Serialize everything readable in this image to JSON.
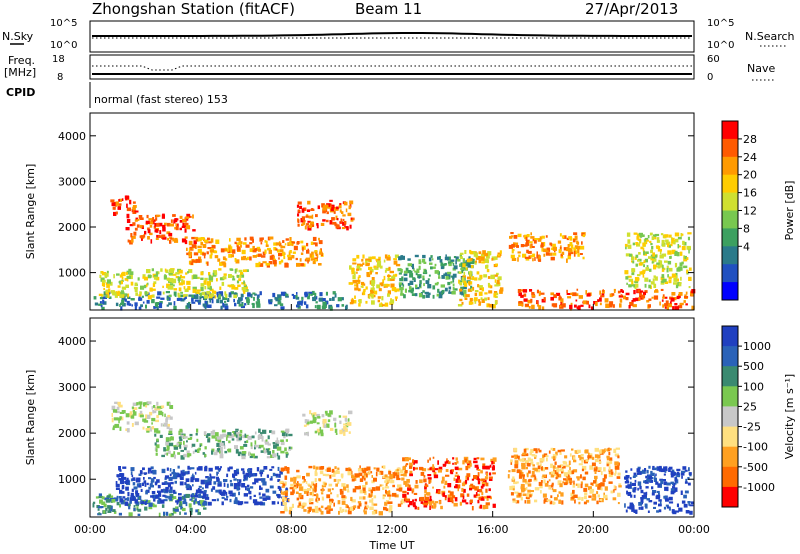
{
  "header": {
    "station": "Zhongshan Station (fitACF)",
    "beam": "Beam 11",
    "date": "27/Apr/2013"
  },
  "summary_panels": {
    "nsky": {
      "label": "N.Sky",
      "ticks": [
        "10^5",
        "10^0"
      ]
    },
    "nsearch": {
      "label": "N.Search",
      "ticks": [
        "10^5",
        "10^0"
      ]
    },
    "freq": {
      "label_line1": "Freq.",
      "label_line2": "[MHz]",
      "ticks": [
        "18",
        "8"
      ]
    },
    "nave": {
      "label": "Nave",
      "ticks": [
        "60",
        "0"
      ]
    },
    "cpid": {
      "label": "CPID",
      "value": "normal (fast stereo) 153"
    }
  },
  "chart_data": [
    {
      "type": "heatmap",
      "name": "power",
      "ylabel": "Slant Range [km]",
      "xlabel": "",
      "ylim": [
        180,
        4500
      ],
      "xlim": [
        0,
        24
      ],
      "y_ticks": [
        "1000",
        "2000",
        "3000",
        "4000"
      ],
      "x_tick_labels": [
        "00:00",
        "04:00",
        "08:00",
        "12:00",
        "16:00",
        "20:00",
        "00:00"
      ],
      "colorbar": {
        "label": "Power [dB]",
        "ticks": [
          "28",
          "24",
          "20",
          "16",
          "12",
          "8",
          "4"
        ],
        "colors": [
          "#ff0000",
          "#ff5a00",
          "#ff9a00",
          "#ffcc00",
          "#cfe030",
          "#78c850",
          "#3ca060",
          "#2a7a8a",
          "#2050c0",
          "#0000ff"
        ]
      },
      "regions": [
        {
          "t0": 0.1,
          "t1": 10.2,
          "r0": 250,
          "r1": 600,
          "level": 7
        },
        {
          "t0": 0.3,
          "t1": 6.2,
          "r0": 500,
          "r1": 1100,
          "level": 4
        },
        {
          "t0": 0.8,
          "t1": 1.8,
          "r0": 2300,
          "r1": 2700,
          "level": 1
        },
        {
          "t0": 1.4,
          "t1": 4.2,
          "r0": 1700,
          "r1": 2300,
          "level": 1
        },
        {
          "t0": 3.8,
          "t1": 9.2,
          "r0": 1200,
          "r1": 1800,
          "level": 2
        },
        {
          "t0": 8.2,
          "t1": 10.4,
          "r0": 2000,
          "r1": 2600,
          "level": 1
        },
        {
          "t0": 10.2,
          "t1": 12.2,
          "r0": 300,
          "r1": 1400,
          "level": 3
        },
        {
          "t0": 12.2,
          "t1": 15.2,
          "r0": 500,
          "r1": 1400,
          "level": 6
        },
        {
          "t0": 14.6,
          "t1": 16.3,
          "r0": 300,
          "r1": 1500,
          "level": 3
        },
        {
          "t0": 16.6,
          "t1": 19.6,
          "r0": 1300,
          "r1": 1900,
          "level": 2
        },
        {
          "t0": 17.0,
          "t1": 23.9,
          "r0": 250,
          "r1": 650,
          "level": 1
        },
        {
          "t0": 21.2,
          "t1": 23.8,
          "r0": 700,
          "r1": 1900,
          "level": 4
        }
      ]
    },
    {
      "type": "heatmap",
      "name": "velocity",
      "ylabel": "Slant Range [km]",
      "xlabel": "Time UT",
      "ylim": [
        180,
        4500
      ],
      "xlim": [
        0,
        24
      ],
      "y_ticks": [
        "1000",
        "2000",
        "3000",
        "4000"
      ],
      "x_tick_labels": [
        "00:00",
        "04:00",
        "08:00",
        "12:00",
        "16:00",
        "20:00",
        "00:00"
      ],
      "colorbar": {
        "label": "Velocity [m s⁻¹]",
        "ticks": [
          "1000",
          "500",
          "100",
          "25",
          "-25",
          "-100",
          "-500",
          "-1000"
        ],
        "colors": [
          "#2040c0",
          "#2a62b8",
          "#3a8a70",
          "#7ac850",
          "#c8c8c8",
          "#ffe080",
          "#ffa020",
          "#ff6a00",
          "#ff0000"
        ]
      },
      "regions": [
        {
          "t0": 0.1,
          "t1": 4.5,
          "r0": 250,
          "r1": 700,
          "level": 2
        },
        {
          "t0": 1.0,
          "t1": 7.8,
          "r0": 500,
          "r1": 1300,
          "level": 0
        },
        {
          "t0": 0.8,
          "t1": 3.2,
          "r0": 2100,
          "r1": 2700,
          "level": 4
        },
        {
          "t0": 2.5,
          "t1": 8.0,
          "r0": 1500,
          "r1": 2100,
          "level": 3
        },
        {
          "t0": 7.5,
          "t1": 12.5,
          "r0": 300,
          "r1": 1300,
          "level": 6
        },
        {
          "t0": 8.4,
          "t1": 10.3,
          "r0": 2000,
          "r1": 2500,
          "level": 4
        },
        {
          "t0": 12.4,
          "t1": 16.0,
          "r0": 400,
          "r1": 1500,
          "level": 7
        },
        {
          "t0": 16.6,
          "t1": 21.0,
          "r0": 500,
          "r1": 1700,
          "level": 6
        },
        {
          "t0": 21.2,
          "t1": 23.9,
          "r0": 300,
          "r1": 1300,
          "level": 0
        }
      ]
    }
  ]
}
